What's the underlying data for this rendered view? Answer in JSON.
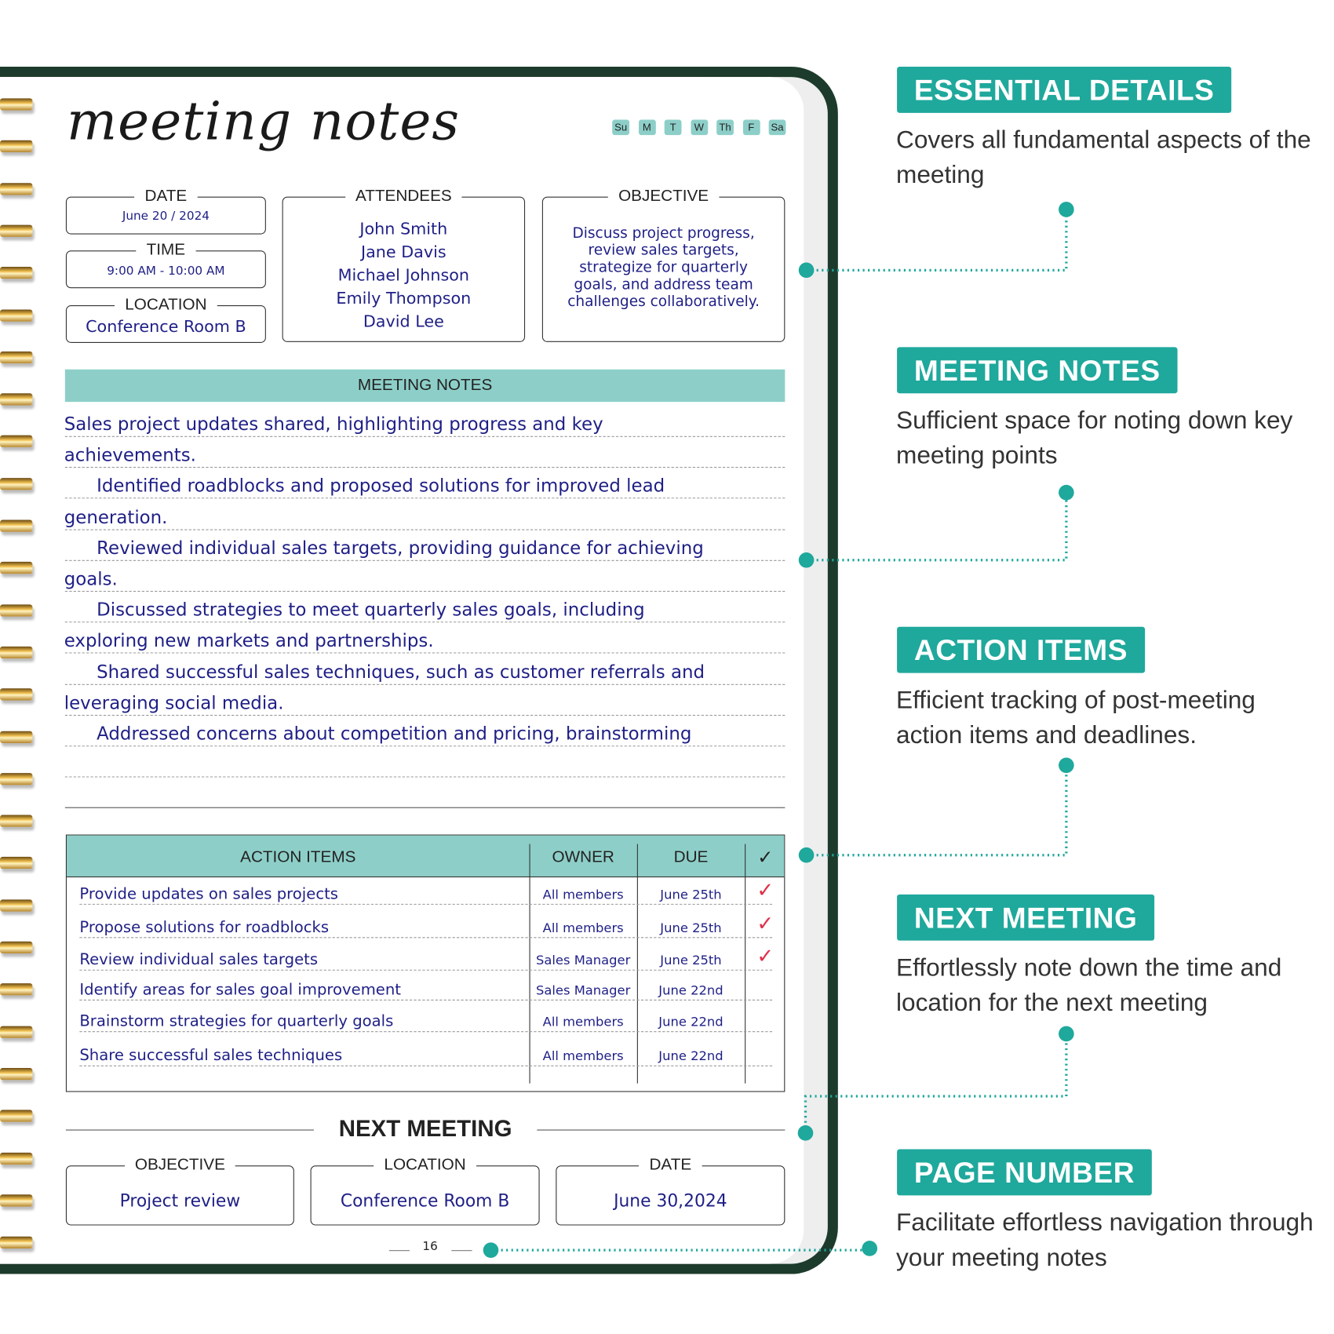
{
  "planner": {
    "title": "meeting notes",
    "days": [
      "Su",
      "M",
      "T",
      "W",
      "Th",
      "F",
      "Sa"
    ],
    "date": {
      "label": "DATE",
      "value": "June 20 / 2024"
    },
    "time": {
      "label": "TIME",
      "value": "9:00 AM - 10:00 AM"
    },
    "location": {
      "label": "LOCATION",
      "value": "Conference Room B"
    },
    "attendees": {
      "label": "ATTENDEES",
      "names": [
        "John Smith",
        "Jane Davis",
        "Michael Johnson",
        "Emily Thompson",
        "David Lee"
      ]
    },
    "objective": {
      "label": "OBJECTIVE",
      "lines": [
        "Discuss project progress,",
        "review sales targets,",
        "strategize for quarterly",
        "goals, and address team",
        "challenges collaboratively."
      ]
    },
    "notes": {
      "header": "MEETING NOTES",
      "lines": [
        "Sales project updates shared, highlighting progress and key",
        "achievements.",
        "Identified roadblocks and proposed solutions for improved lead",
        "generation.",
        "Reviewed individual sales targets, providing guidance for achieving",
        "goals.",
        "Discussed strategies to meet quarterly sales goals, including",
        "exploring new markets and partnerships.",
        "Shared successful sales techniques, such as customer referrals and",
        "leveraging social media.",
        "Addressed concerns about competition and pricing, brainstorming"
      ]
    },
    "action_items": {
      "headers": {
        "item": "ACTION ITEMS",
        "owner": "OWNER",
        "due": "DUE",
        "done": "✓"
      },
      "rows": [
        {
          "item": "Provide updates on sales projects",
          "owner": "All members",
          "due": "June 25th",
          "done": "✓"
        },
        {
          "item": "Propose solutions for roadblocks",
          "owner": "All members",
          "due": "June 25th",
          "done": "✓"
        },
        {
          "item": "Review individual sales targets",
          "owner": "Sales Manager",
          "due": "June 25th",
          "done": "✓"
        },
        {
          "item": "Identify areas for sales goal improvement",
          "owner": "Sales Manager",
          "due": "June 22nd",
          "done": ""
        },
        {
          "item": "Brainstorm strategies for quarterly goals",
          "owner": "All members",
          "due": "June 22nd",
          "done": ""
        },
        {
          "item": "Share successful sales techniques",
          "owner": "All members",
          "due": "June 22nd",
          "done": ""
        }
      ]
    },
    "next_meeting": {
      "heading": "NEXT MEETING",
      "objective": {
        "label": "OBJECTIVE",
        "value": "Project review"
      },
      "location": {
        "label": "LOCATION",
        "value": "Conference Room B"
      },
      "date": {
        "label": "DATE",
        "value": "June 30,2024"
      }
    },
    "page_number": "16"
  },
  "features": [
    {
      "title": "ESSENTIAL DETAILS",
      "desc": "Covers all fundamental aspects of the meeting"
    },
    {
      "title": "MEETING NOTES",
      "desc": "Sufficient space for noting down key meeting points"
    },
    {
      "title": "ACTION ITEMS",
      "desc": "Efficient tracking of post-meeting action items and deadlines."
    },
    {
      "title": "NEXT MEETING",
      "desc": "Effortlessly note down the time and location for the next meeting"
    },
    {
      "title": "PAGE NUMBER",
      "desc": "Facilitate effortless navigation through your meeting notes"
    }
  ],
  "colors": {
    "accent": "#1fa89c",
    "section_fill": "#8dcfc8",
    "cover": "#1d3b2c",
    "ink": "#1f1f86",
    "check": "#e0304a"
  }
}
